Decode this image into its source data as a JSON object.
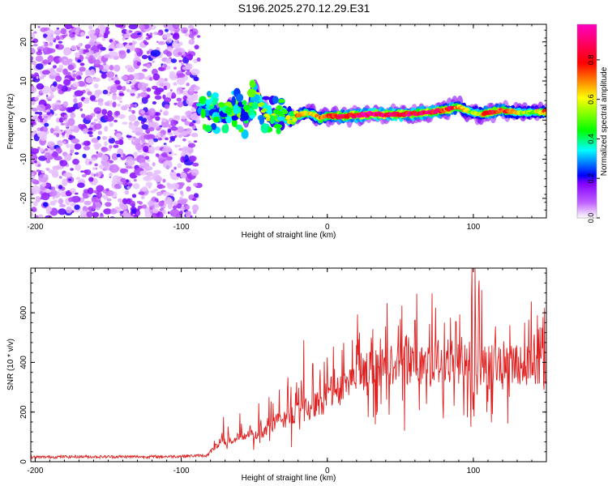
{
  "title": "S196.2025.270.12.29.E31",
  "colors": {
    "snr_line": "#e02020",
    "axis": "#000000",
    "background": "#ffffff"
  },
  "chart_data": [
    {
      "type": "heatmap",
      "name": "spectrogram",
      "xlabel": "Height of straight line (km)",
      "ylabel": "Frequency (Hz)",
      "xlim": [
        -203,
        150
      ],
      "ylim": [
        -25,
        24.5
      ],
      "x_ticks": [
        -200,
        -100,
        0,
        100
      ],
      "y_ticks": [
        -20,
        -10,
        0,
        10,
        20
      ],
      "colorbar": {
        "label": "Normalized spectral amplitude",
        "range": [
          0,
          0.98
        ],
        "ticks": [
          "0.0",
          "0.2",
          "0.4",
          "0.6",
          "0.8"
        ],
        "tick_values": [
          0,
          0.2,
          0.4,
          0.6,
          0.8
        ],
        "colormap": [
          "#ffffff",
          "#b000ff",
          "#0000ff",
          "#00ffff",
          "#00ff00",
          "#ffff00",
          "#ff0000",
          "#ff00c0"
        ]
      },
      "noise_region_x": [
        -203,
        -88
      ],
      "signal_track": {
        "x": [
          -88,
          -80,
          -72,
          -65,
          -60,
          -55,
          -50,
          -45,
          -40,
          -35,
          -30,
          -25,
          -20,
          -15,
          -10,
          -5,
          0,
          10,
          20,
          30,
          40,
          50,
          60,
          70,
          80,
          85,
          90,
          95,
          100,
          105,
          110,
          120,
          130,
          140,
          150
        ],
        "freq": [
          3.5,
          2.5,
          1.0,
          4.0,
          2.5,
          0.5,
          8.0,
          4.0,
          1.0,
          0.5,
          1.5,
          0.5,
          1.0,
          2.0,
          1.5,
          0.5,
          1.0,
          1.0,
          1.2,
          1.5,
          1.5,
          1.5,
          1.6,
          2.0,
          2.5,
          3.0,
          3.5,
          2.5,
          2.0,
          1.5,
          2.0,
          2.5,
          2.0,
          2.0,
          2.0
        ],
        "amp": [
          0.45,
          0.35,
          0.5,
          0.45,
          0.4,
          0.45,
          0.5,
          0.55,
          0.6,
          0.5,
          0.55,
          0.6,
          0.7,
          0.65,
          0.6,
          0.7,
          0.75,
          0.85,
          0.9,
          0.95,
          0.95,
          0.9,
          0.85,
          0.9,
          0.8,
          0.85,
          0.7,
          0.6,
          0.55,
          0.6,
          0.85,
          0.8,
          0.6,
          0.55,
          0.7
        ]
      }
    },
    {
      "type": "line",
      "name": "snr",
      "xlabel": "Height of straight line (km)",
      "ylabel": "SNR (10 * v/v)",
      "xlim": [
        -203,
        150
      ],
      "ylim": [
        0,
        780
      ],
      "x_ticks": [
        -200,
        -100,
        0,
        100
      ],
      "y_ticks": [
        0,
        200,
        400,
        600
      ],
      "series": [
        {
          "name": "SNR",
          "x": [
            -203,
            -180,
            -160,
            -140,
            -120,
            -100,
            -90,
            -82,
            -78,
            -75,
            -70,
            -65,
            -60,
            -55,
            -50,
            -45,
            -40,
            -35,
            -30,
            -25,
            -20,
            -15,
            -10,
            -5,
            0,
            5,
            10,
            15,
            20,
            25,
            30,
            35,
            40,
            45,
            50,
            60,
            70,
            80,
            90,
            95,
            98,
            100,
            102,
            105,
            110,
            120,
            130,
            140,
            150
          ],
          "base": [
            18,
            20,
            20,
            20,
            20,
            22,
            24,
            25,
            55,
            70,
            85,
            90,
            95,
            110,
            110,
            120,
            130,
            160,
            170,
            190,
            200,
            210,
            225,
            235,
            270,
            290,
            310,
            340,
            355,
            365,
            375,
            380,
            385,
            390,
            395,
            400,
            400,
            405,
            400,
            390,
            360,
            250,
            330,
            370,
            390,
            400,
            400,
            395,
            400
          ],
          "spikes": [
            {
              "x": -71,
              "y": 180
            },
            {
              "x": -60,
              "y": 195
            },
            {
              "x": -47,
              "y": 235
            },
            {
              "x": -40,
              "y": 260
            },
            {
              "x": -33,
              "y": 290
            },
            {
              "x": -27,
              "y": 340
            },
            {
              "x": -21,
              "y": 320
            },
            {
              "x": -16,
              "y": 490
            },
            {
              "x": -10,
              "y": 395
            },
            {
              "x": -5,
              "y": 370
            },
            {
              "x": 0,
              "y": 420
            },
            {
              "x": 10,
              "y": 450
            },
            {
              "x": 20,
              "y": 470
            },
            {
              "x": 30,
              "y": 500
            },
            {
              "x": 40,
              "y": 545
            },
            {
              "x": 50,
              "y": 575
            },
            {
              "x": 60,
              "y": 570
            },
            {
              "x": 70,
              "y": 555
            },
            {
              "x": 80,
              "y": 560
            },
            {
              "x": 88,
              "y": 565
            },
            {
              "x": 99,
              "y": 780
            },
            {
              "x": 101,
              "y": 780
            },
            {
              "x": 104,
              "y": 730
            },
            {
              "x": 115,
              "y": 545
            },
            {
              "x": 125,
              "y": 550
            },
            {
              "x": 135,
              "y": 560
            },
            {
              "x": 147,
              "y": 540
            }
          ]
        }
      ]
    }
  ]
}
